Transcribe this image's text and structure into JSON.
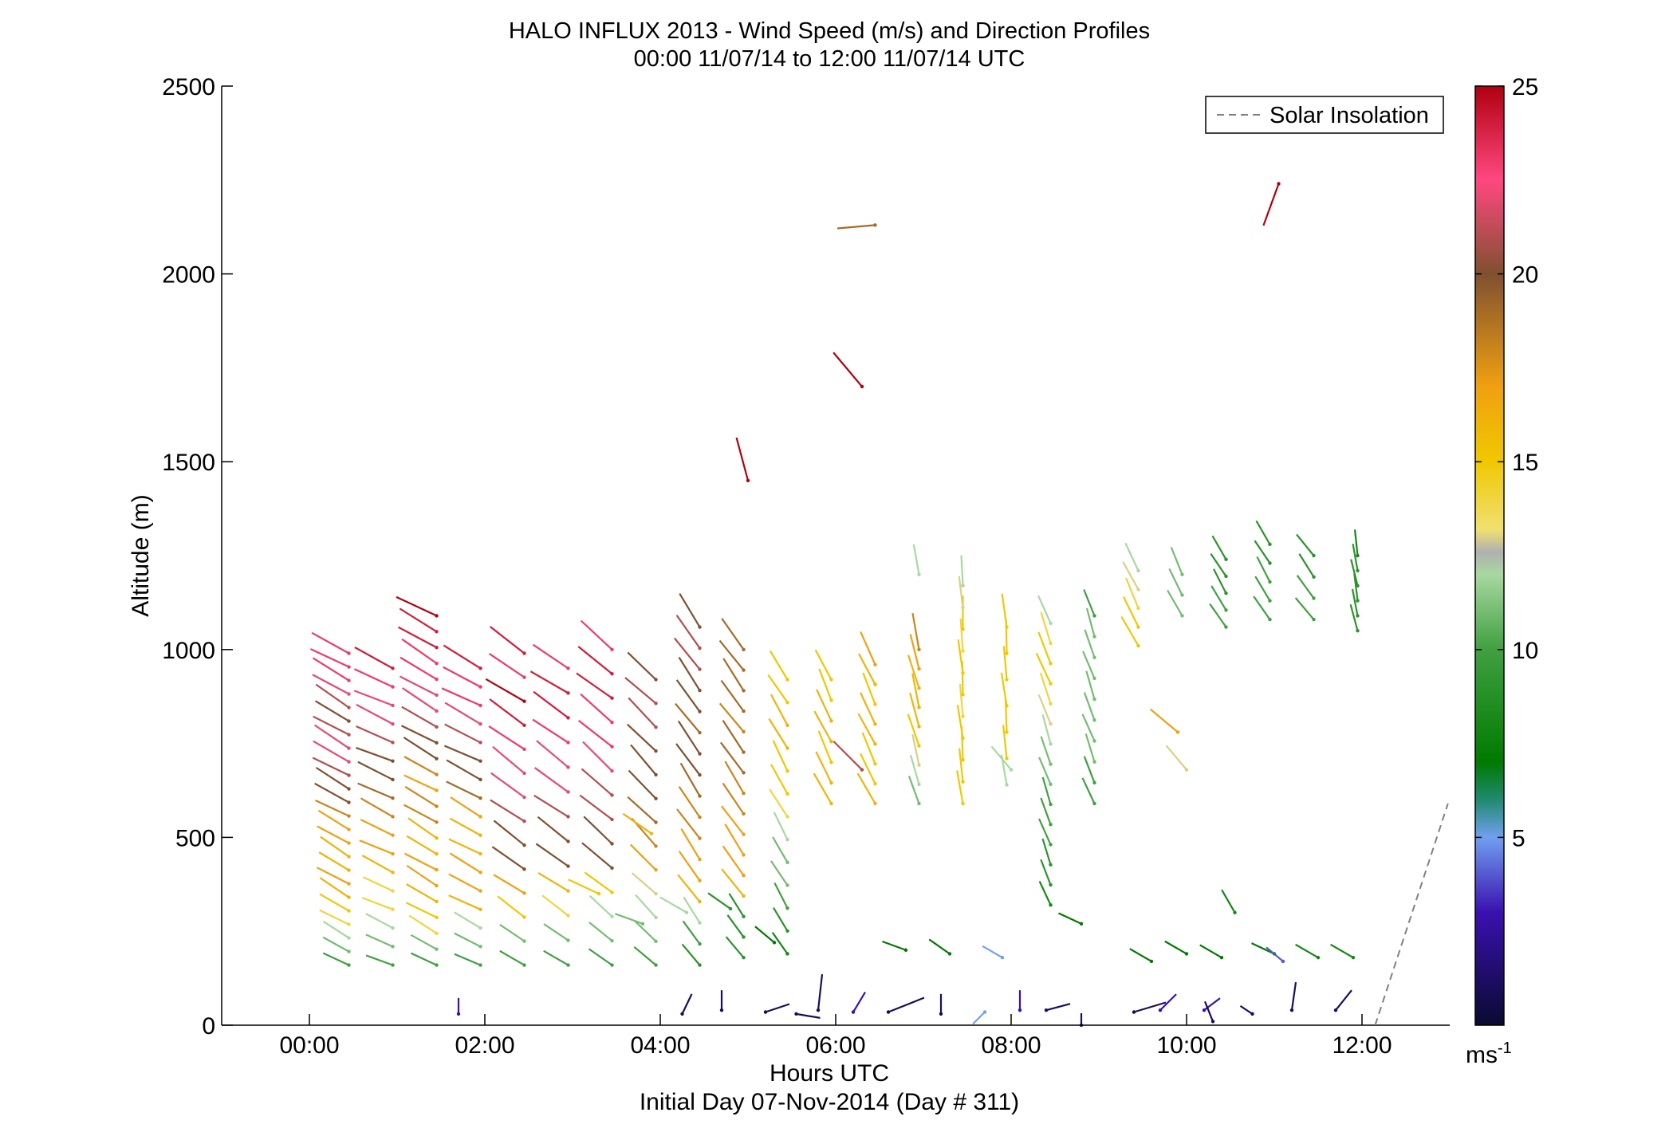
{
  "chart_data": {
    "type": "wind_barb_profile",
    "title": "HALO INFLUX 2013 - Wind Speed (m/s) and Direction Profiles",
    "subtitle": "00:00 11/07/14 to 12:00 11/07/14  UTC",
    "xlabel": "Hours UTC",
    "xlabel2": "Initial Day 07-Nov-2014 (Day # 311)",
    "ylabel": "Altitude (m)",
    "xlim_hours": [
      -1.0,
      13.0
    ],
    "ylim": [
      0,
      2500
    ],
    "x_ticks": [
      {
        "value": 0,
        "label": "00:00"
      },
      {
        "value": 2,
        "label": "02:00"
      },
      {
        "value": 4,
        "label": "04:00"
      },
      {
        "value": 6,
        "label": "06:00"
      },
      {
        "value": 8,
        "label": "08:00"
      },
      {
        "value": 10,
        "label": "10:00"
      },
      {
        "value": 12,
        "label": "12:00"
      }
    ],
    "y_ticks": [
      {
        "value": 0,
        "label": "0"
      },
      {
        "value": 500,
        "label": "500"
      },
      {
        "value": 1000,
        "label": "1000"
      },
      {
        "value": 1500,
        "label": "1500"
      },
      {
        "value": 2000,
        "label": "2000"
      },
      {
        "value": 2500,
        "label": "2500"
      }
    ],
    "legend": {
      "label": "Solar Insolation",
      "placement": "top-right",
      "style": "dashed",
      "color": "#808080"
    },
    "colorbar": {
      "range": [
        0,
        25
      ],
      "unit_label": "ms",
      "unit_exponent": "-1",
      "ticks": [
        {
          "value": 5,
          "label": "5"
        },
        {
          "value": 10,
          "label": "10"
        },
        {
          "value": 15,
          "label": "15"
        },
        {
          "value": 20,
          "label": "20"
        },
        {
          "value": 25,
          "label": "25"
        }
      ],
      "stops": [
        {
          "v": 0,
          "c": "#0a0a30"
        },
        {
          "v": 3,
          "c": "#3a10b0"
        },
        {
          "v": 5,
          "c": "#70a0f0"
        },
        {
          "v": 6,
          "c": "#208a70"
        },
        {
          "v": 7,
          "c": "#007a00"
        },
        {
          "v": 10,
          "c": "#40a040"
        },
        {
          "v": 12,
          "c": "#a8d8a0"
        },
        {
          "v": 12.6,
          "c": "#b0b0b0"
        },
        {
          "v": 13.2,
          "c": "#f0e070"
        },
        {
          "v": 15,
          "c": "#f0c800"
        },
        {
          "v": 17,
          "c": "#f0a010"
        },
        {
          "v": 20,
          "c": "#805030"
        },
        {
          "v": 22.5,
          "c": "#ff4880"
        },
        {
          "v": 25,
          "c": "#b00010"
        }
      ]
    },
    "solar_insolation": [
      {
        "hour": 12.15,
        "altitude": 0
      },
      {
        "hour": 12.98,
        "altitude": 590
      }
    ],
    "profiles": [
      {
        "hour": 0.0,
        "group": "a",
        "base_alt": 160,
        "top_alt": 990,
        "dir": 300,
        "speeds": [
          10,
          11,
          12,
          14,
          15,
          16,
          17,
          16,
          16,
          17,
          17,
          18,
          20,
          20,
          21,
          22,
          22,
          21,
          20,
          21,
          22,
          23,
          23,
          23
        ]
      },
      {
        "hour": 0.5,
        "group": "b",
        "base_alt": 160,
        "top_alt": 950,
        "dir": 295,
        "speeds": [
          10,
          11,
          12,
          14,
          14,
          16,
          17,
          17,
          18,
          19,
          20,
          20,
          21,
          22,
          22,
          23,
          24
        ]
      },
      {
        "hour": 1.0,
        "group": "a",
        "base_alt": 160,
        "top_alt": 1090,
        "dir": 300,
        "speeds": [
          10,
          11,
          14,
          15,
          16,
          17,
          17,
          16,
          16,
          18,
          18,
          17,
          18,
          20,
          20,
          21,
          22,
          22,
          23,
          23,
          24,
          24,
          25
        ]
      },
      {
        "hour": 1.5,
        "group": "b",
        "base_alt": 160,
        "top_alt": 950,
        "dir": 298,
        "speeds": [
          10,
          11,
          12,
          16,
          17,
          17,
          16,
          16,
          17,
          19,
          20,
          20,
          21,
          22,
          23,
          23,
          24
        ]
      },
      {
        "hour": 2.0,
        "group": "c",
        "base_alt": 160,
        "top_alt": 990,
        "dir": 305,
        "speeds": [
          10,
          11,
          15,
          17,
          20,
          20,
          21,
          22,
          22,
          23,
          24,
          25,
          23,
          24
        ]
      },
      {
        "hour": 2.5,
        "group": "c",
        "base_alt": 160,
        "top_alt": 950,
        "dir": 305,
        "speeds": [
          10,
          11,
          14,
          16,
          20,
          20,
          21,
          22,
          22,
          23,
          24,
          24,
          23
        ]
      },
      {
        "hour": 3.0,
        "group": "c",
        "base_alt": 160,
        "top_alt": 1000,
        "dir": 310,
        "speeds": [
          10,
          11,
          12,
          15,
          20,
          20,
          21,
          21,
          22,
          23,
          23,
          24,
          24,
          23
        ]
      },
      {
        "hour": 3.5,
        "group": "c",
        "base_alt": 160,
        "top_alt": 920,
        "dir": 315,
        "speeds": [
          10,
          11,
          12,
          13,
          17,
          18,
          19,
          20,
          20,
          20,
          21,
          21,
          20
        ]
      },
      {
        "hour": 4.0,
        "group": "d",
        "base_alt": 160,
        "top_alt": 1060,
        "dir": 325,
        "speeds": [
          9,
          10,
          12,
          16,
          17,
          17,
          18,
          18,
          19,
          20,
          20,
          19,
          20,
          20,
          21,
          21,
          20
        ]
      },
      {
        "hour": 4.5,
        "group": "d",
        "base_alt": 180,
        "top_alt": 1000,
        "dir": 325,
        "speeds": [
          9,
          9,
          9,
          16,
          17,
          17,
          17,
          18,
          18,
          19,
          19,
          18,
          19,
          19,
          19,
          19
        ]
      },
      {
        "hour": 5.0,
        "group": "d",
        "base_alt": 190,
        "top_alt": 920,
        "dir": 330,
        "speeds": [
          8,
          9,
          10,
          11,
          11,
          12,
          14,
          15,
          15,
          16,
          16,
          15,
          15
        ]
      },
      {
        "hour": 5.5,
        "group": "e",
        "base_alt": 590,
        "top_alt": 920,
        "dir": 335,
        "speeds": [
          16,
          16,
          15,
          16,
          16,
          15,
          15
        ]
      },
      {
        "hour": 6.0,
        "group": "e",
        "base_alt": 590,
        "top_alt": 960,
        "dir": 335,
        "speeds": [
          16,
          15,
          15,
          16,
          16,
          15,
          16,
          17
        ]
      },
      {
        "hour": 6.5,
        "group": "e",
        "base_alt": 590,
        "top_alt": 1000,
        "dir": 345,
        "speeds": [
          11,
          12,
          13,
          15,
          16,
          16,
          16,
          17,
          18
        ]
      },
      {
        "hour": 7.0,
        "group": "f",
        "base_alt": 590,
        "top_alt": 1170,
        "dir": 355,
        "speeds": [
          15,
          15,
          15,
          15,
          14,
          15,
          15,
          14,
          15,
          13,
          12
        ]
      },
      {
        "hour": 7.5,
        "group": "f",
        "base_alt": 640,
        "top_alt": 1060,
        "dir": 355,
        "speeds": [
          12,
          15,
          15,
          15,
          15,
          15,
          15
        ]
      },
      {
        "hour": 8.0,
        "group": "f",
        "base_alt": 320,
        "top_alt": 1070,
        "dir": 340,
        "speeds": [
          8,
          9,
          9,
          10,
          10,
          10,
          11,
          11,
          12,
          13,
          14,
          15,
          15,
          14,
          12
        ]
      },
      {
        "hour": 8.5,
        "group": "f",
        "base_alt": 590,
        "top_alt": 1090,
        "dir": 340,
        "speeds": [
          10,
          10,
          11,
          11,
          11,
          11,
          11,
          11,
          11,
          10
        ]
      },
      {
        "hour": 9.0,
        "group": "g",
        "base_alt": 1010,
        "top_alt": 1210,
        "dir": 335,
        "speeds": [
          15,
          15,
          14,
          13,
          12
        ]
      },
      {
        "hour": 9.5,
        "group": "g",
        "base_alt": 1090,
        "top_alt": 1200,
        "dir": 335,
        "speeds": [
          11,
          11,
          11
        ]
      },
      {
        "hour": 10.0,
        "group": "g",
        "base_alt": 1060,
        "top_alt": 1240,
        "dir": 330,
        "speeds": [
          10,
          10,
          9,
          9,
          9
        ]
      },
      {
        "hour": 10.5,
        "group": "g",
        "base_alt": 1080,
        "top_alt": 1280,
        "dir": 330,
        "speeds": [
          10,
          10,
          10,
          9,
          9
        ]
      },
      {
        "hour": 11.0,
        "group": "g",
        "base_alt": 1080,
        "top_alt": 1250,
        "dir": 325,
        "speeds": [
          10,
          10,
          9,
          9
        ]
      },
      {
        "hour": 11.5,
        "group": "g",
        "base_alt": 1050,
        "top_alt": 1250,
        "dir": 350,
        "speeds": [
          9,
          9,
          9,
          9,
          9,
          8
        ]
      }
    ],
    "low_level_winds": [
      {
        "hour": 1.7,
        "alt": 30,
        "u": 0,
        "v": 20,
        "speed": 3
      },
      {
        "hour": 4.25,
        "alt": 30,
        "u": 12,
        "v": 25,
        "speed": 1
      },
      {
        "hour": 4.7,
        "alt": 40,
        "u": 0,
        "v": 25,
        "speed": 1
      },
      {
        "hour": 5.2,
        "alt": 35,
        "u": 30,
        "v": 10,
        "speed": 1
      },
      {
        "hour": 5.55,
        "alt": 30,
        "u": 30,
        "v": -5,
        "speed": 1
      },
      {
        "hour": 5.8,
        "alt": 40,
        "u": 5,
        "v": 45,
        "speed": 1
      },
      {
        "hour": 6.2,
        "alt": 35,
        "u": 15,
        "v": 25,
        "speed": 3
      },
      {
        "hour": 6.6,
        "alt": 35,
        "u": 45,
        "v": 18,
        "speed": 1
      },
      {
        "hour": 7.2,
        "alt": 30,
        "u": 0,
        "v": 25,
        "speed": 1
      },
      {
        "hour": 7.7,
        "alt": 35,
        "u": -15,
        "v": -15,
        "speed": 5
      },
      {
        "hour": 8.1,
        "alt": 40,
        "u": 0,
        "v": 25,
        "speed": 3
      },
      {
        "hour": 8.4,
        "alt": 40,
        "u": 30,
        "v": 8,
        "speed": 1
      },
      {
        "hour": 8.8,
        "alt": 0,
        "u": 0,
        "v": 15,
        "speed": 1
      },
      {
        "hour": 9.4,
        "alt": 35,
        "u": 40,
        "v": 12,
        "speed": 1
      },
      {
        "hour": 9.7,
        "alt": 40,
        "u": 20,
        "v": 20,
        "speed": 3
      },
      {
        "hour": 10.2,
        "alt": 40,
        "u": 20,
        "v": 15,
        "speed": 3
      },
      {
        "hour": 10.3,
        "alt": 10,
        "u": -10,
        "v": 25,
        "speed": 1
      },
      {
        "hour": 10.75,
        "alt": 30,
        "u": -15,
        "v": 10,
        "speed": 1
      },
      {
        "hour": 11.2,
        "alt": 40,
        "u": 5,
        "v": 35,
        "speed": 1
      },
      {
        "hour": 11.7,
        "alt": 40,
        "u": 20,
        "v": 25,
        "speed": 1
      }
    ],
    "surface_layer_winds": [
      {
        "hour": 3.0,
        "alt": 350,
        "speed": 15,
        "dir": 295
      },
      {
        "hour": 3.5,
        "alt": 270,
        "speed": 11,
        "dir": 290
      },
      {
        "hour": 4.0,
        "alt": 300,
        "speed": 12,
        "dir": 300
      },
      {
        "hour": 4.5,
        "alt": 310,
        "speed": 9,
        "dir": 305
      },
      {
        "hour": 5.0,
        "alt": 220,
        "speed": 7,
        "dir": 310
      },
      {
        "hour": 6.5,
        "alt": 200,
        "speed": 7,
        "dir": 290
      },
      {
        "hour": 7.0,
        "alt": 190,
        "speed": 7,
        "dir": 305
      },
      {
        "hour": 7.6,
        "alt": 180,
        "speed": 5,
        "dir": 300
      },
      {
        "hour": 8.5,
        "alt": 270,
        "speed": 7,
        "dir": 295
      },
      {
        "hour": 9.3,
        "alt": 170,
        "speed": 7,
        "dir": 300
      },
      {
        "hour": 9.7,
        "alt": 190,
        "speed": 7,
        "dir": 300
      },
      {
        "hour": 10.1,
        "alt": 180,
        "speed": 7,
        "dir": 300
      },
      {
        "hour": 10.25,
        "alt": 300,
        "speed": 8,
        "dir": 330
      },
      {
        "hour": 10.7,
        "alt": 190,
        "speed": 7,
        "dir": 295
      },
      {
        "hour": 10.8,
        "alt": 170,
        "speed": 4,
        "dir": 310
      },
      {
        "hour": 11.2,
        "alt": 180,
        "speed": 8,
        "dir": 300
      },
      {
        "hour": 11.6,
        "alt": 180,
        "speed": 8,
        "dir": 300
      }
    ],
    "isolated_winds": [
      {
        "hour": 6.15,
        "alt": 2130,
        "speed": 19,
        "dir": 265
      },
      {
        "hour": 10.75,
        "alt": 2240,
        "speed": 25,
        "dir": 200
      },
      {
        "hour": 6.0,
        "alt": 1700,
        "speed": 25,
        "dir": 320
      },
      {
        "hour": 4.7,
        "alt": 1450,
        "speed": 25,
        "dir": 345
      },
      {
        "hour": 6.65,
        "alt": 1200,
        "speed": 12,
        "dir": 350
      },
      {
        "hour": 9.6,
        "alt": 780,
        "speed": 17,
        "dir": 310
      },
      {
        "hour": 9.7,
        "alt": 680,
        "speed": 13,
        "dir": 320
      },
      {
        "hour": 6.0,
        "alt": 680,
        "speed": 21,
        "dir": 315
      },
      {
        "hour": 7.7,
        "alt": 680,
        "speed": 12,
        "dir": 320
      },
      {
        "hour": 3.6,
        "alt": 510,
        "speed": 16,
        "dir": 305
      }
    ]
  }
}
